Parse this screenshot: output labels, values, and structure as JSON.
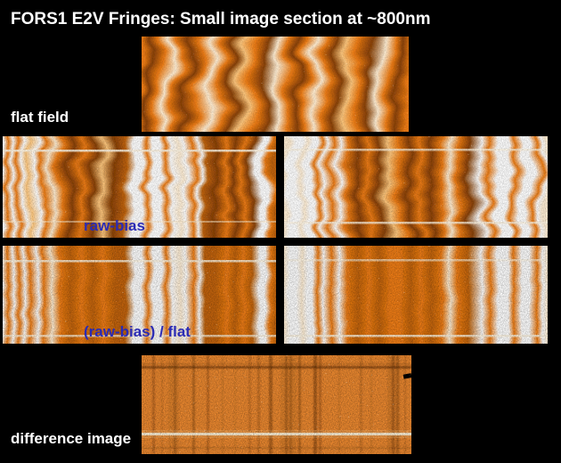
{
  "title": "FORS1 E2V Fringes: Small image section at ~800nm",
  "labels": {
    "flat_field": "flat field",
    "raw_bias": "raw-bias",
    "ratio": "(raw-bias) / flat",
    "difference": "difference image"
  },
  "colors": {
    "background": "#000000",
    "title_text": "#ffffff",
    "label_white": "#ffffff",
    "label_blue": "#2b2bb4",
    "fringe_orange": "#ef7d14",
    "fringe_bright": "#ffeed4",
    "fringe_dark": "#8a4206",
    "difference_base": "#ee8a30"
  },
  "panels": [
    {
      "name": "flat-field-image",
      "caption": "flat field"
    },
    {
      "name": "raw-bias-left-image",
      "caption": "raw-bias"
    },
    {
      "name": "raw-bias-right-image",
      "caption": "raw-bias"
    },
    {
      "name": "ratio-left-image",
      "caption": "(raw-bias) / flat"
    },
    {
      "name": "ratio-right-image",
      "caption": "(raw-bias) / flat"
    },
    {
      "name": "difference-image",
      "caption": "difference image"
    }
  ]
}
